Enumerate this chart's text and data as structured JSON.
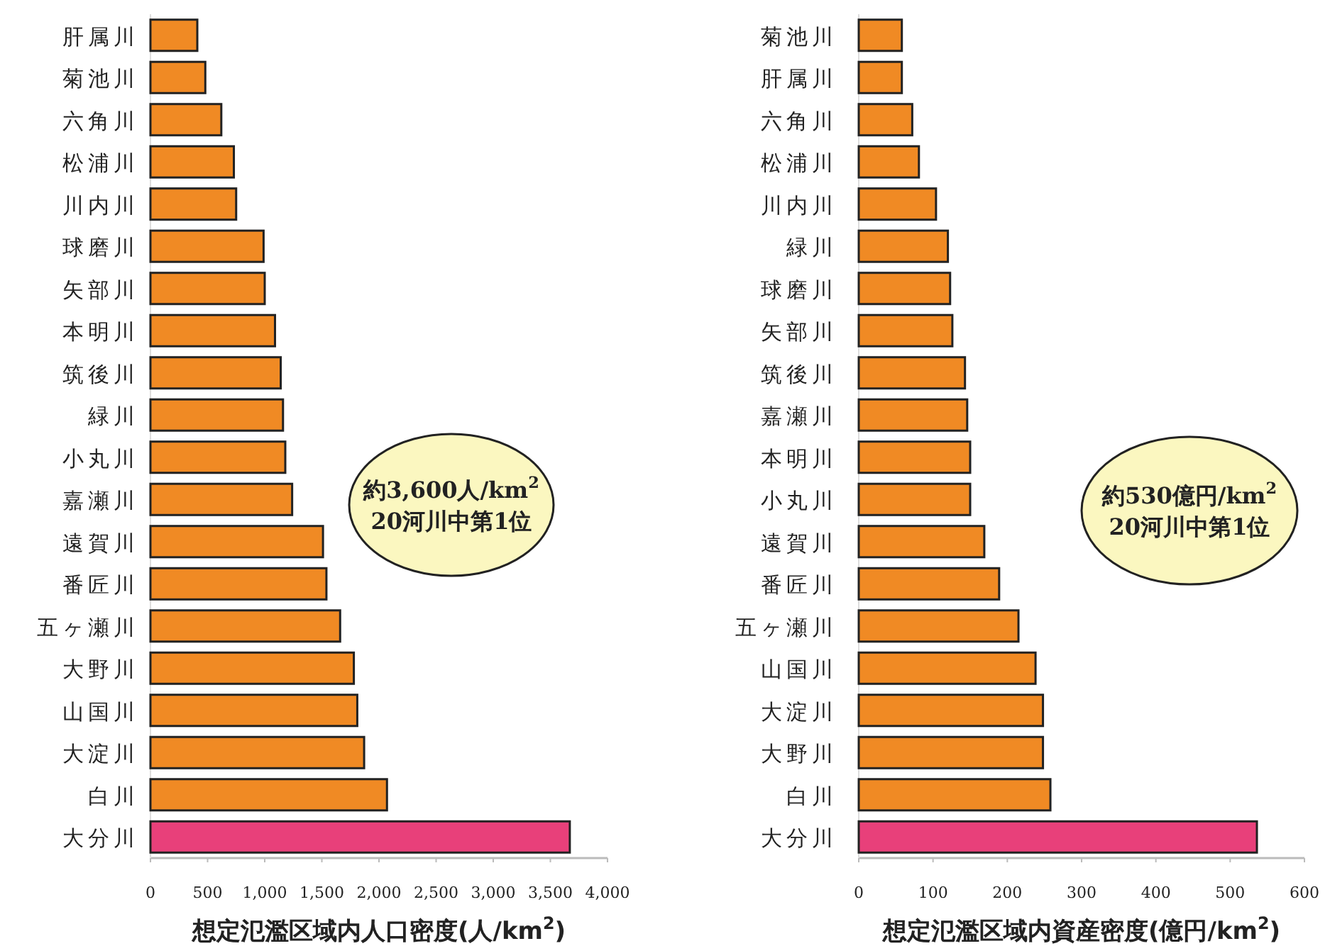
{
  "chart_data": [
    {
      "type": "bar",
      "orientation": "horizontal",
      "categories": [
        "肝属川",
        "菊池川",
        "六角川",
        "松浦川",
        "川内川",
        "球磨川",
        "矢部川",
        "本明川",
        "筑後川",
        "緑川",
        "小丸川",
        "嘉瀬川",
        "遠賀川",
        "番匠川",
        "五ヶ瀬川",
        "大野川",
        "山国川",
        "大淀川",
        "白川",
        "大分川"
      ],
      "values": [
        410,
        480,
        620,
        730,
        750,
        990,
        1000,
        1090,
        1140,
        1160,
        1180,
        1240,
        1510,
        1540,
        1660,
        1780,
        1810,
        1870,
        2070,
        3670
      ],
      "colors": [
        "#f08a24",
        "#f08a24",
        "#f08a24",
        "#f08a24",
        "#f08a24",
        "#f08a24",
        "#f08a24",
        "#f08a24",
        "#f08a24",
        "#f08a24",
        "#f08a24",
        "#f08a24",
        "#f08a24",
        "#f08a24",
        "#f08a24",
        "#f08a24",
        "#f08a24",
        "#f08a24",
        "#f08a24",
        "#e8407a"
      ],
      "xlim": [
        0,
        4000
      ],
      "xticks": [
        0,
        500,
        {
          "value": 1000,
          "label": "1,000"
        },
        {
          "value": 1500,
          "label": "1,500"
        },
        {
          "value": 2000,
          "label": "2,000"
        },
        {
          "value": 2500,
          "label": "2,500"
        },
        {
          "value": 3000,
          "label": "3,000"
        },
        {
          "value": 3500,
          "label": "3,500"
        },
        {
          "value": 4000,
          "label": "4,000"
        }
      ],
      "xlabel": "想定氾濫区域内人口密度(人/km$^{2}$)",
      "annotations": [
        "約3,600人/km$^{2}$",
        "20河川中第1位"
      ]
    },
    {
      "type": "bar",
      "orientation": "horizontal",
      "categories": [
        "菊池川",
        "肝属川",
        "六角川",
        "松浦川",
        "川内川",
        "緑川",
        "球磨川",
        "矢部川",
        "筑後川",
        "嘉瀬川",
        "本明川",
        "小丸川",
        "遠賀川",
        "番匠川",
        "五ヶ瀬川",
        "山国川",
        "大淀川",
        "大野川",
        "白川",
        "大分川"
      ],
      "values": [
        58,
        58,
        72,
        81,
        104,
        120,
        123,
        126,
        143,
        146,
        150,
        150,
        169,
        189,
        215,
        238,
        248,
        248,
        258,
        536
      ],
      "colors": [
        "#f08a24",
        "#f08a24",
        "#f08a24",
        "#f08a24",
        "#f08a24",
        "#f08a24",
        "#f08a24",
        "#f08a24",
        "#f08a24",
        "#f08a24",
        "#f08a24",
        "#f08a24",
        "#f08a24",
        "#f08a24",
        "#f08a24",
        "#f08a24",
        "#f08a24",
        "#f08a24",
        "#f08a24",
        "#e8407a"
      ],
      "xlim": [
        0,
        600
      ],
      "xticks": [
        0,
        100,
        200,
        300,
        400,
        500,
        600
      ],
      "xlabel": "想定氾濫区域内資産密度(億円/km$^{2}$)",
      "annotations": [
        "約530億円/km$^{2}$",
        "20河川中第1位"
      ]
    }
  ]
}
